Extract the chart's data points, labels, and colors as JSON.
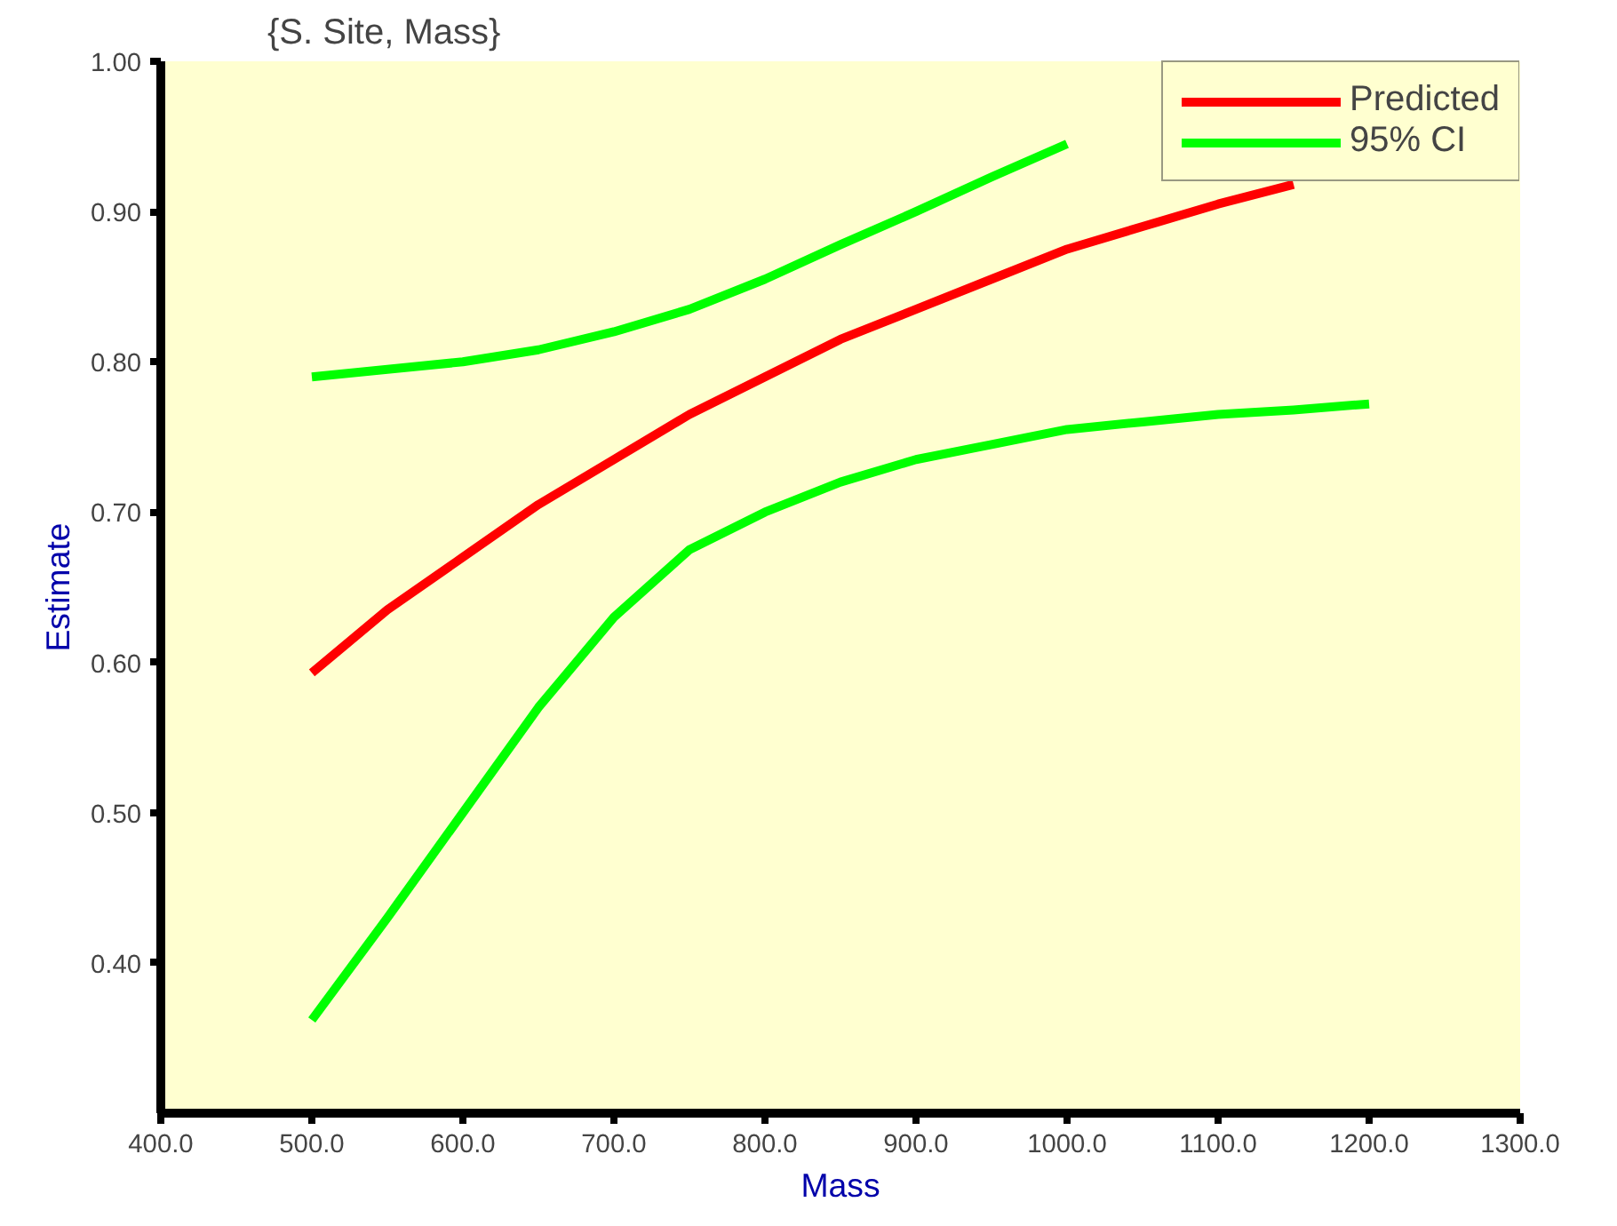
{
  "chart_data": {
    "type": "line",
    "title": "{S. Site, Mass}",
    "xlabel": "Mass",
    "ylabel": "Estimate",
    "x": [
      500,
      550,
      600,
      650,
      700,
      750,
      800,
      850,
      900,
      950,
      1000,
      1050,
      1100,
      1150,
      1200
    ],
    "series": [
      {
        "name": "Predicted",
        "color": "#ff0000",
        "values": [
          0.593,
          0.635,
          0.67,
          0.705,
          0.735,
          0.765,
          0.79,
          0.815,
          0.835,
          0.855,
          0.875,
          0.89,
          0.905,
          0.918,
          null
        ]
      },
      {
        "name": "95% CI",
        "color": "#00ff00",
        "values": [
          0.79,
          0.795,
          0.8,
          0.808,
          0.82,
          0.835,
          0.855,
          0.878,
          0.9,
          0.923,
          0.945,
          null,
          null,
          null,
          null
        ]
      },
      {
        "color": "#00ff00",
        "values": [
          0.362,
          0.43,
          0.5,
          0.57,
          0.63,
          0.675,
          0.7,
          0.72,
          0.735,
          0.745,
          0.755,
          0.76,
          0.765,
          0.768,
          0.772
        ]
      }
    ],
    "xlim": [
      400,
      1300
    ],
    "ylim": [
      0.3,
      1.0
    ],
    "xticks": [
      {
        "value": 400,
        "label": "400.0"
      },
      {
        "value": 500,
        "label": "500.0"
      },
      {
        "value": 600,
        "label": "600.0"
      },
      {
        "value": 700,
        "label": "700.0"
      },
      {
        "value": 800,
        "label": "800.0"
      },
      {
        "value": 900,
        "label": "900.0"
      },
      {
        "value": 1000,
        "label": "1000.0"
      },
      {
        "value": 1100,
        "label": "1100.0"
      },
      {
        "value": 1200,
        "label": "1200.0"
      },
      {
        "value": 1300,
        "label": "1300.0"
      }
    ],
    "yticks": [
      {
        "value": 0.4,
        "label": "0.40"
      },
      {
        "value": 0.5,
        "label": "0.50"
      },
      {
        "value": 0.6,
        "label": "0.60"
      },
      {
        "value": 0.7,
        "label": "0.70"
      },
      {
        "value": 0.8,
        "label": "0.80"
      },
      {
        "value": 0.9,
        "label": "0.90"
      },
      {
        "value": 1.0,
        "label": "1.00"
      }
    ],
    "grid": false,
    "legend": "top right",
    "line_style": "solid"
  }
}
